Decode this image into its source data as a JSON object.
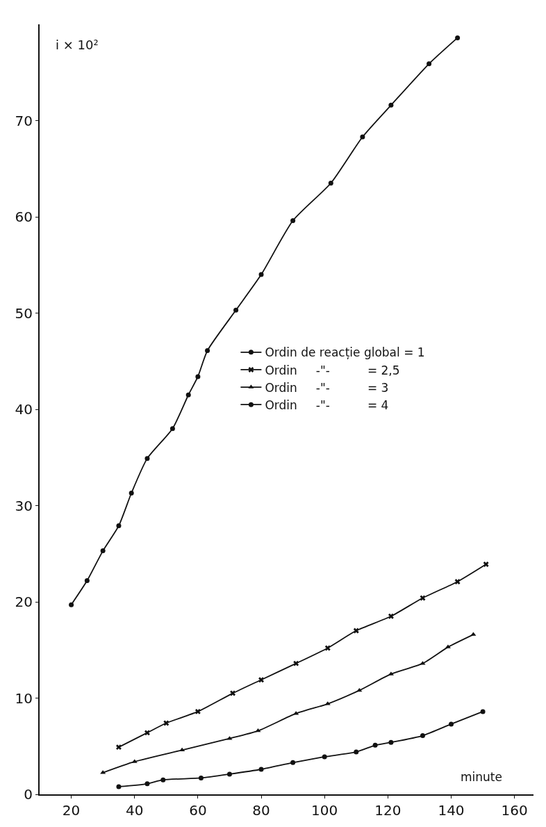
{
  "chart_data": {
    "type": "line",
    "xlabel": "minute",
    "ylabel": "i × 10²",
    "series": [
      {
        "name": "Ordin de reacție global = 1",
        "color": "#111111",
        "marker": "circle",
        "x": [
          20,
          25,
          30,
          35,
          39,
          44,
          52,
          57,
          60,
          63,
          72,
          80,
          90,
          102,
          112,
          121,
          133,
          142
        ],
        "values": [
          19.7,
          22.2,
          25.3,
          27.9,
          31.3,
          34.9,
          38.0,
          41.5,
          43.4,
          46.1,
          50.3,
          54.0,
          59.6,
          63.5,
          68.3,
          71.6,
          75.9,
          78.6
        ]
      },
      {
        "name": "Ordin     -\"-          = 2,5",
        "color": "#111111",
        "marker": "cross",
        "x": [
          35,
          44,
          50,
          60,
          71,
          80,
          91,
          101,
          110,
          121,
          131,
          142,
          151
        ],
        "values": [
          4.9,
          6.4,
          7.4,
          8.6,
          10.5,
          11.9,
          13.6,
          15.2,
          17.0,
          18.5,
          20.4,
          22.1,
          23.9
        ]
      },
      {
        "name": "Ordin     -\"-          = 3",
        "color": "#111111",
        "marker": "triangle",
        "x": [
          30,
          40,
          55,
          70,
          79,
          91,
          101,
          111,
          121,
          131,
          139,
          147
        ],
        "values": [
          2.25,
          3.4,
          4.6,
          5.8,
          6.6,
          8.4,
          9.4,
          10.8,
          12.5,
          13.6,
          15.3,
          16.6
        ]
      },
      {
        "name": "Ordin     -\"-          = 4",
        "color": "#111111",
        "marker": "circle",
        "x": [
          35,
          44,
          49,
          61,
          70,
          80,
          90,
          100,
          110,
          116,
          121,
          131,
          140,
          150
        ],
        "values": [
          0.8,
          1.1,
          1.5,
          1.7,
          2.1,
          2.6,
          3.3,
          3.9,
          4.4,
          5.1,
          5.4,
          6.1,
          7.3,
          8.6
        ]
      }
    ],
    "xlim": [
      10,
      166
    ],
    "ylim": [
      0,
      80
    ],
    "xticks": [
      20,
      40,
      60,
      80,
      100,
      120,
      140,
      160
    ],
    "yticks": [
      0,
      10,
      20,
      30,
      40,
      50,
      60,
      70
    ],
    "grid": false,
    "legend": "right",
    "line_style": "solid"
  }
}
